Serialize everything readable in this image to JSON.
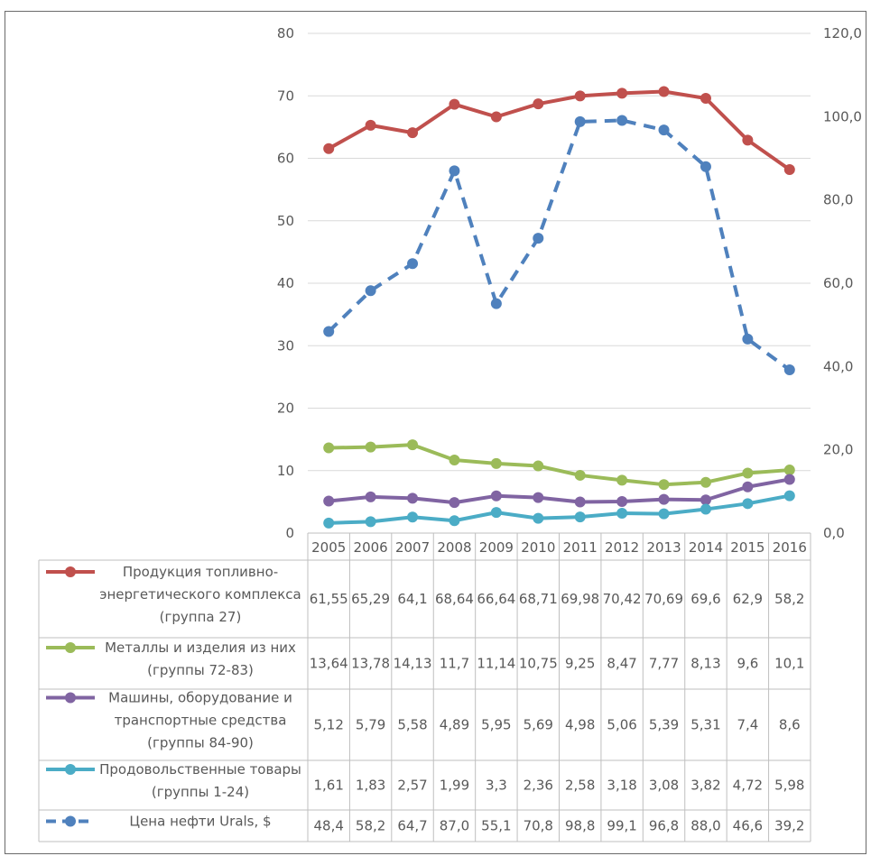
{
  "chart_data": {
    "type": "line",
    "categories": [
      "2005",
      "2006",
      "2007",
      "2008",
      "2009",
      "2010",
      "2011",
      "2012",
      "2013",
      "2014",
      "2015",
      "2016"
    ],
    "y_left_ticks": [
      "0",
      "10",
      "20",
      "30",
      "40",
      "50",
      "60",
      "70",
      "80"
    ],
    "y_right_ticks": [
      "0,0",
      "20,0",
      "40,0",
      "60,0",
      "80,0",
      "100,0",
      "120,0"
    ],
    "ylim_left": [
      0,
      80
    ],
    "ylim_right": [
      0,
      120
    ],
    "grid": true,
    "legend": "data-table",
    "series": [
      {
        "name_lines": [
          "Продукция топливно-",
          "энергетического комплекса",
          "(группа 27)"
        ],
        "values": [
          61.55,
          65.29,
          64.1,
          68.64,
          66.64,
          68.71,
          69.98,
          70.42,
          70.69,
          69.6,
          62.9,
          58.2
        ],
        "labels": [
          "61,55",
          "65,29",
          "64,1",
          "68,64",
          "66,64",
          "68,71",
          "69,98",
          "70,42",
          "70,69",
          "69,6",
          "62,9",
          "58,2"
        ],
        "color": "#c0504d",
        "axis": "left",
        "dash": false
      },
      {
        "name_lines": [
          "Металлы и изделия из них",
          "(группы 72-83)"
        ],
        "values": [
          13.64,
          13.78,
          14.13,
          11.7,
          11.14,
          10.75,
          9.25,
          8.47,
          7.77,
          8.13,
          9.6,
          10.1
        ],
        "labels": [
          "13,64",
          "13,78",
          "14,13",
          "11,7",
          "11,14",
          "10,75",
          "9,25",
          "8,47",
          "7,77",
          "8,13",
          "9,6",
          "10,1"
        ],
        "color": "#9bbb59",
        "axis": "left",
        "dash": false
      },
      {
        "name_lines": [
          "Машины, оборудование и",
          "транспортные средства",
          "(группы 84-90)"
        ],
        "values": [
          5.12,
          5.79,
          5.58,
          4.89,
          5.95,
          5.69,
          4.98,
          5.06,
          5.39,
          5.31,
          7.4,
          8.6
        ],
        "labels": [
          "5,12",
          "5,79",
          "5,58",
          "4,89",
          "5,95",
          "5,69",
          "4,98",
          "5,06",
          "5,39",
          "5,31",
          "7,4",
          "8,6"
        ],
        "color": "#8064a2",
        "axis": "left",
        "dash": false
      },
      {
        "name_lines": [
          "Продовольственные товары",
          "(группы 1-24)"
        ],
        "values": [
          1.61,
          1.83,
          2.57,
          1.99,
          3.3,
          2.36,
          2.58,
          3.18,
          3.08,
          3.82,
          4.72,
          5.98
        ],
        "labels": [
          "1,61",
          "1,83",
          "2,57",
          "1,99",
          "3,3",
          "2,36",
          "2,58",
          "3,18",
          "3,08",
          "3,82",
          "4,72",
          "5,98"
        ],
        "color": "#4bacc6",
        "axis": "left",
        "dash": false
      },
      {
        "name_lines": [
          "Цена нефти Urals, $"
        ],
        "values": [
          48.4,
          58.2,
          64.7,
          87.0,
          55.1,
          70.8,
          98.8,
          99.1,
          96.8,
          88.0,
          46.6,
          39.2
        ],
        "labels": [
          "48,4",
          "58,2",
          "64,7",
          "87,0",
          "55,1",
          "70,8",
          "98,8",
          "99,1",
          "96,8",
          "88,0",
          "46,6",
          "39,2"
        ],
        "color": "#4f81bd",
        "axis": "right",
        "dash": true
      }
    ]
  }
}
